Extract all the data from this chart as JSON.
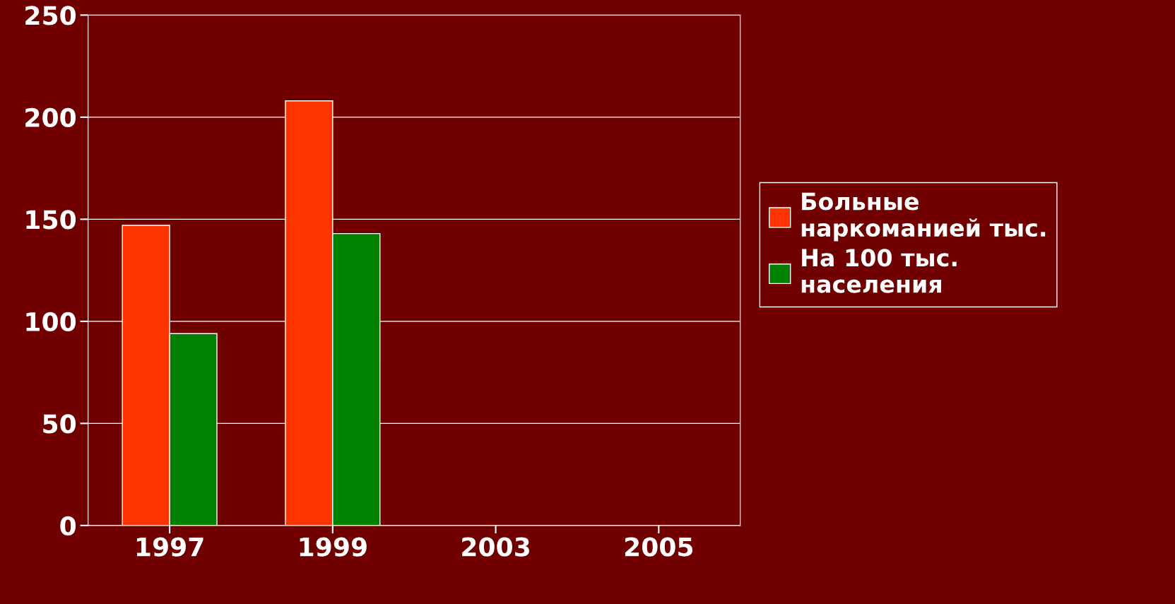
{
  "chart_data": {
    "type": "bar",
    "categories": [
      "1997",
      "1999",
      "2003",
      "2005"
    ],
    "series": [
      {
        "name": "Больные\nнаркоманией тыс.",
        "color": "#ff3300",
        "values": [
          147,
          208,
          null,
          null
        ]
      },
      {
        "name": "На 100 тыс.\nнаселения",
        "color": "#008000",
        "values": [
          94,
          143,
          null,
          null
        ]
      }
    ],
    "ylim": [
      0,
      250
    ],
    "yticks": [
      0,
      50,
      100,
      150,
      200,
      250
    ],
    "grid": "y",
    "legend": "right"
  }
}
